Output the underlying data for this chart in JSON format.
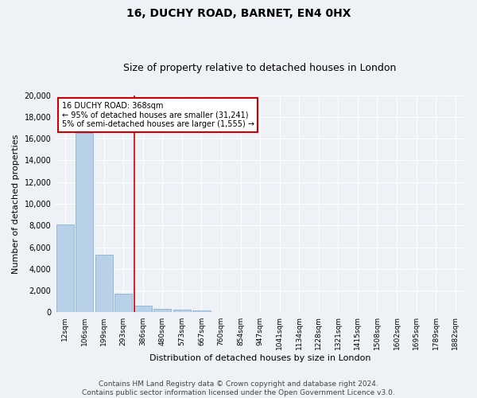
{
  "title_line1": "16, DUCHY ROAD, BARNET, EN4 0HX",
  "title_line2": "Size of property relative to detached houses in London",
  "xlabel": "Distribution of detached houses by size in London",
  "ylabel": "Number of detached properties",
  "categories": [
    "12sqm",
    "106sqm",
    "199sqm",
    "293sqm",
    "386sqm",
    "480sqm",
    "573sqm",
    "667sqm",
    "760sqm",
    "854sqm",
    "947sqm",
    "1041sqm",
    "1134sqm",
    "1228sqm",
    "1321sqm",
    "1415sqm",
    "1508sqm",
    "1602sqm",
    "1695sqm",
    "1789sqm",
    "1882sqm"
  ],
  "values": [
    8100,
    16500,
    5300,
    1750,
    650,
    350,
    270,
    200,
    0,
    0,
    0,
    0,
    0,
    0,
    0,
    0,
    0,
    0,
    0,
    0,
    0
  ],
  "bar_color": "#b8d0e8",
  "bar_edge_color": "#7aaace",
  "vline_color": "#cc0000",
  "vline_x": 3.57,
  "annotation_title": "16 DUCHY ROAD: 368sqm",
  "annotation_line2": "← 95% of detached houses are smaller (31,241)",
  "annotation_line3": "5% of semi-detached houses are larger (1,555) →",
  "annotation_box_color": "white",
  "annotation_box_edge_color": "#cc0000",
  "ylim": [
    0,
    20000
  ],
  "yticks": [
    0,
    2000,
    4000,
    6000,
    8000,
    10000,
    12000,
    14000,
    16000,
    18000,
    20000
  ],
  "footer_line1": "Contains HM Land Registry data © Crown copyright and database right 2024.",
  "footer_line2": "Contains public sector information licensed under the Open Government Licence v3.0.",
  "background_color": "#eef2f7",
  "plot_background_color": "#eef2f7",
  "grid_color": "white",
  "title_fontsize": 10,
  "subtitle_fontsize": 9,
  "axis_label_fontsize": 8,
  "tick_fontsize": 6.5,
  "footer_fontsize": 6.5,
  "annotation_fontsize": 7
}
